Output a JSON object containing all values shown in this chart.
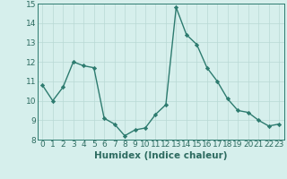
{
  "x": [
    0,
    1,
    2,
    3,
    4,
    5,
    6,
    7,
    8,
    9,
    10,
    11,
    12,
    13,
    14,
    15,
    16,
    17,
    18,
    19,
    20,
    21,
    22,
    23
  ],
  "y": [
    10.8,
    10.0,
    10.7,
    12.0,
    11.8,
    11.7,
    9.1,
    8.8,
    8.2,
    8.5,
    8.6,
    9.3,
    9.8,
    14.8,
    13.4,
    12.9,
    11.7,
    11.0,
    10.1,
    9.5,
    9.4,
    9.0,
    8.7,
    8.8
  ],
  "xlabel": "Humidex (Indice chaleur)",
  "xlim": [
    -0.5,
    23.5
  ],
  "ylim": [
    8,
    15
  ],
  "yticks": [
    8,
    9,
    10,
    11,
    12,
    13,
    14,
    15
  ],
  "xticks": [
    0,
    1,
    2,
    3,
    4,
    5,
    6,
    7,
    8,
    9,
    10,
    11,
    12,
    13,
    14,
    15,
    16,
    17,
    18,
    19,
    20,
    21,
    22,
    23
  ],
  "line_color": "#2d7b6f",
  "marker": "D",
  "marker_size": 2.2,
  "line_width": 1.0,
  "bg_color": "#d6efec",
  "grid_color": "#b8d9d4",
  "xlabel_fontsize": 7.5,
  "tick_fontsize": 6.5
}
